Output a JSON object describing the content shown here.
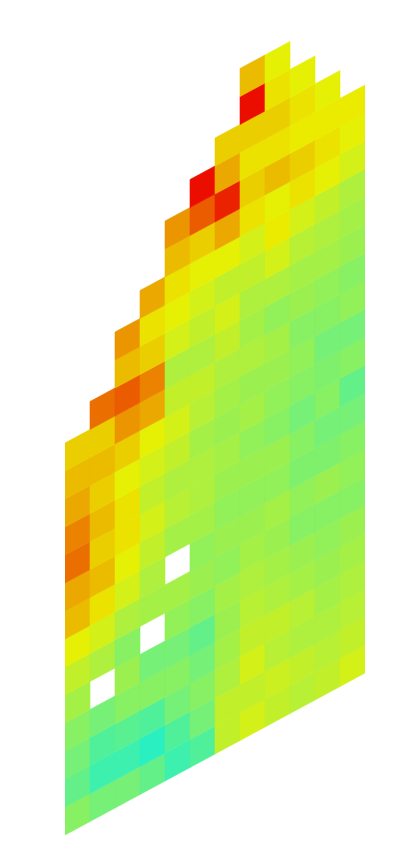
{
  "chart_data": {
    "type": "heatmap",
    "tick_labels": false,
    "grid": false,
    "color_range": [
      0,
      1
    ],
    "cells": [
      [
        0.52,
        0.48,
        0.5,
        0.52,
        0.55,
        0.58,
        0.62,
        0.68,
        0.7,
        0.76,
        0.74,
        0.7,
        0.68,
        0.66
      ],
      [
        0.5,
        0.44,
        0.46,
        0.5,
        null,
        0.56,
        0.6,
        0.64,
        0.68,
        0.66,
        0.68,
        0.66,
        0.68,
        0.66,
        0.76
      ],
      [
        0.5,
        0.44,
        0.47,
        0.52,
        0.54,
        0.52,
        0.56,
        0.6,
        0.62,
        0.64,
        0.64,
        0.62,
        0.66,
        0.72,
        0.78,
        0.68,
        0.72
      ],
      [
        0.48,
        0.42,
        0.46,
        0.52,
        0.5,
        null,
        0.55,
        0.56,
        0.58,
        0.6,
        0.58,
        0.6,
        0.62,
        0.7,
        0.74,
        0.66,
        0.64,
        0.7
      ],
      [
        0.44,
        0.46,
        0.5,
        0.52,
        0.5,
        0.53,
        0.55,
        null,
        0.55,
        0.57,
        0.56,
        0.58,
        0.6,
        0.58,
        0.56,
        0.6,
        0.62,
        0.64,
        0.68,
        0.72
      ],
      [
        0.46,
        0.5,
        0.52,
        0.5,
        0.48,
        0.52,
        0.54,
        0.53,
        0.55,
        0.56,
        0.56,
        0.55,
        0.57,
        0.58,
        0.56,
        0.58,
        0.6,
        0.62,
        0.66,
        0.78,
        0.86
      ],
      [
        0.58,
        0.58,
        0.56,
        0.55,
        0.54,
        0.55,
        0.53,
        0.54,
        0.53,
        0.54,
        0.55,
        0.54,
        0.55,
        0.56,
        0.58,
        0.6,
        0.58,
        0.62,
        0.7,
        0.84,
        0.7,
        0.66
      ],
      [
        0.6,
        0.58,
        0.6,
        0.58,
        0.57,
        0.56,
        0.55,
        0.54,
        0.53,
        0.54,
        0.53,
        0.55,
        0.54,
        0.56,
        0.55,
        0.56,
        0.58,
        0.6,
        0.64,
        0.66,
        0.64,
        0.66,
        0.86,
        0.68
      ],
      [
        0.58,
        0.59,
        0.57,
        0.58,
        0.56,
        0.55,
        0.54,
        0.55,
        0.53,
        0.54,
        0.52,
        0.53,
        0.54,
        0.55,
        0.53,
        0.56,
        0.6,
        0.63,
        0.62,
        0.68,
        0.64,
        0.66,
        0.64,
        0.62
      ],
      [
        0.57,
        0.58,
        0.56,
        0.57,
        0.55,
        0.54,
        0.52,
        0.53,
        0.51,
        0.52,
        0.5,
        0.52,
        0.53,
        0.52,
        0.54,
        0.55,
        0.57,
        0.6,
        0.64,
        0.66,
        0.63,
        0.64,
        0.62
      ],
      [
        0.58,
        0.57,
        0.56,
        0.55,
        0.54,
        0.53,
        0.52,
        0.54,
        0.51,
        0.5,
        0.52,
        0.51,
        0.5,
        0.52,
        0.53,
        0.55,
        0.56,
        0.58,
        0.62,
        0.64,
        0.63,
        0.62
      ],
      [
        0.6,
        0.58,
        0.57,
        0.56,
        0.55,
        0.54,
        0.52,
        0.53,
        0.52,
        0.5,
        0.48,
        0.52,
        0.5,
        0.53,
        0.52,
        0.54,
        0.55,
        0.56,
        0.6,
        0.62,
        0.63
      ]
    ]
  }
}
